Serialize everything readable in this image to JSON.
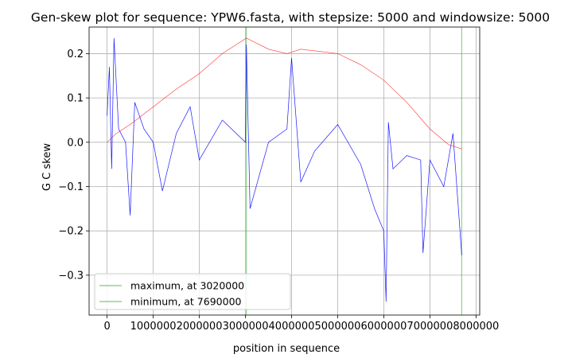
{
  "chart_data": {
    "type": "line",
    "title": "Gen-skew plot for sequence: YPW6.fasta, with stepsize: 5000 and windowsize: 5000",
    "xlabel": "position in sequence",
    "ylabel": "G C skew",
    "xlim": [
      -390000,
      8080000
    ],
    "ylim": [
      -0.39,
      0.26
    ],
    "xticks": [
      0,
      1000000,
      2000000,
      3000000,
      4000000,
      5000000,
      6000000,
      7000000,
      8000000
    ],
    "xtick_labels": [
      "0",
      "1000000",
      "2000000",
      "3000000",
      "4000000",
      "5000000",
      "6000000",
      "7000000",
      "8000000"
    ],
    "yticks": [
      -0.3,
      -0.2,
      -0.1,
      0.0,
      0.1,
      0.2
    ],
    "ytick_labels": [
      "−0.3",
      "−0.2",
      "−0.1",
      "0.0",
      "0.1",
      "0.2"
    ],
    "grid": true,
    "legend_position": "lower-left",
    "colors": {
      "skew": "#0000ff",
      "cumulative": "#ff0000",
      "markers": "#2ca02c"
    },
    "series": [
      {
        "role": "skew",
        "x": [
          0,
          50000,
          100000,
          150000,
          250000,
          400000,
          500000,
          600000,
          800000,
          1000000,
          1200000,
          1500000,
          1800000,
          2000000,
          2500000,
          3000000,
          3020000,
          3100000,
          3500000,
          3900000,
          4000000,
          4200000,
          4500000,
          5000000,
          5500000,
          5800000,
          6000000,
          6050000,
          6100000,
          6200000,
          6500000,
          6800000,
          6850000,
          7000000,
          7300000,
          7500000,
          7690000
        ],
        "y": [
          0.06,
          0.17,
          -0.06,
          0.235,
          0.03,
          0.0,
          -0.165,
          0.09,
          0.03,
          0.0,
          -0.11,
          0.02,
          0.08,
          -0.04,
          0.05,
          0.0,
          0.22,
          -0.15,
          0.0,
          0.03,
          0.19,
          -0.09,
          -0.02,
          0.04,
          -0.05,
          -0.15,
          -0.2,
          -0.36,
          0.045,
          -0.06,
          -0.03,
          -0.04,
          -0.25,
          -0.04,
          -0.1,
          0.02,
          -0.255
        ]
      },
      {
        "role": "cumulative",
        "x": [
          0,
          200000,
          500000,
          1000000,
          1500000,
          2000000,
          2500000,
          3020000,
          3500000,
          3900000,
          4200000,
          4600000,
          5000000,
          5500000,
          6000000,
          6500000,
          7000000,
          7400000,
          7690000
        ],
        "y": [
          0.0,
          0.02,
          0.04,
          0.08,
          0.12,
          0.155,
          0.2,
          0.235,
          0.21,
          0.2,
          0.21,
          0.205,
          0.2,
          0.175,
          0.14,
          0.09,
          0.03,
          -0.005,
          -0.015
        ]
      }
    ],
    "markers": [
      {
        "label": "maximum, at 3020000",
        "x": 3020000
      },
      {
        "label": "minimum, at 7690000",
        "x": 7690000
      }
    ]
  }
}
